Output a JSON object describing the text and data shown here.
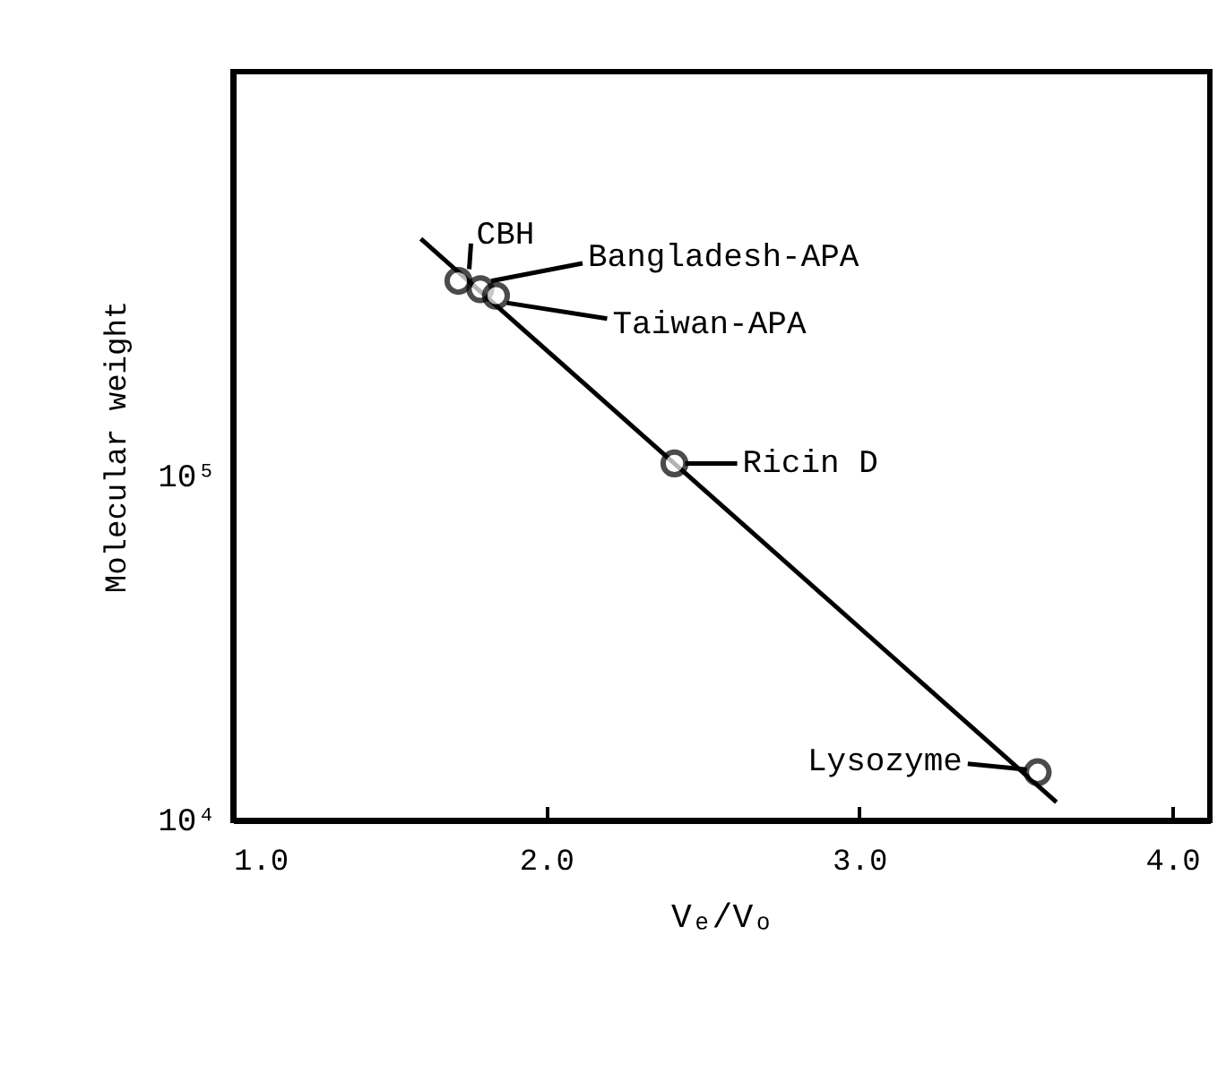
{
  "chart_data": {
    "type": "scatter",
    "xlabel": "Vₑ/Vₒ",
    "ylabel": "Molecular weight",
    "log": "y",
    "grid": false,
    "xlim": [
      1.0,
      4.12
    ],
    "xticks": [
      {
        "value": 1.0,
        "label": "1.0"
      },
      {
        "value": 2.0,
        "label": "2.0"
      },
      {
        "value": 3.0,
        "label": "3.0"
      },
      {
        "value": 4.0,
        "label": "4.0"
      }
    ],
    "ylim": [
      10000,
      1500000
    ],
    "yticks": [
      {
        "value": 10000,
        "label": "10⁴"
      },
      {
        "value": 100000,
        "label": "10⁵"
      }
    ],
    "series": [
      {
        "marker": "circle",
        "color": "#000000",
        "x": [
          1.72,
          1.79,
          1.84,
          2.41,
          3.57
        ],
        "values": [
          370000,
          350000,
          335000,
          109000,
          13800
        ]
      },
      {
        "type": "line",
        "color": "#000000",
        "x": [
          1.6,
          3.63
        ],
        "values": [
          490000,
          11300
        ]
      }
    ],
    "annotations": [
      {
        "text": "CBH",
        "x": 1.72,
        "y": 370000
      },
      {
        "text": "Bangladesh-APA",
        "x": 1.79,
        "y": 350000
      },
      {
        "text": "Taiwan-APA",
        "x": 1.84,
        "y": 335000
      },
      {
        "text": "Ricin D",
        "x": 2.41,
        "y": 109000
      },
      {
        "text": "Lysozyme",
        "x": 3.57,
        "y": 13800
      }
    ]
  }
}
